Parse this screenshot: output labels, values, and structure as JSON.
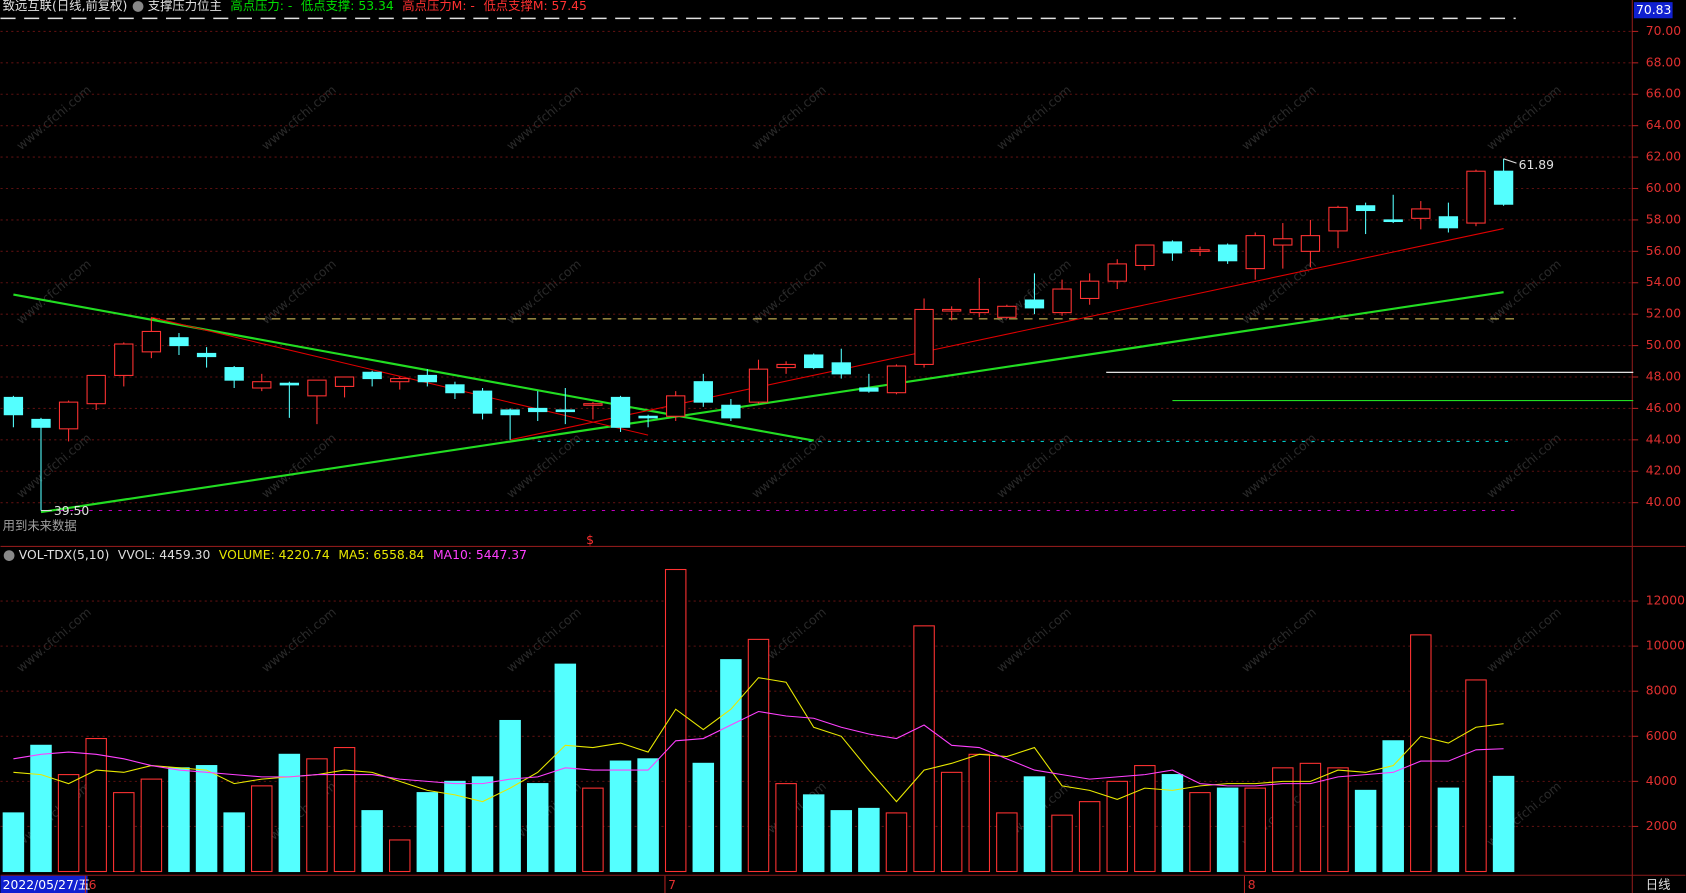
{
  "chart_data": {
    "type": "candlestick",
    "title": "致远互联(日线,前复权)",
    "indicator": "支撑压力位主",
    "indicator_items": [
      {
        "text": "高点压力: -",
        "color": "#00e000"
      },
      {
        "text": "低点支撑: 53.34",
        "color": "#00e000"
      },
      {
        "text": "高点压力M: -",
        "color": "#ff3030"
      },
      {
        "text": "低点支撑M: 57.45",
        "color": "#ff3030"
      }
    ],
    "up_color": "#ff3232",
    "down_color": "#54ffff",
    "open": [
      46.7,
      45.3,
      44.7,
      46.3,
      48.1,
      49.6,
      50.5,
      49.5,
      48.6,
      47.3,
      47.6,
      46.8,
      47.4,
      48.3,
      47.7,
      48.1,
      47.5,
      47.1,
      45.9,
      46.0,
      45.9,
      46.2,
      46.7,
      45.5,
      45.5,
      47.7,
      46.2,
      46.4,
      48.6,
      49.4,
      48.9,
      47.3,
      47.0,
      48.8,
      52.2,
      52.1,
      51.8,
      52.9,
      52.1,
      53.0,
      54.1,
      55.1,
      56.6,
      56.0,
      56.4,
      54.9,
      56.4,
      56.0,
      57.3,
      58.9,
      58.0,
      58.1,
      58.2,
      57.8,
      61.1
    ],
    "high": [
      46.8,
      45.4,
      46.5,
      48.1,
      50.2,
      51.8,
      50.8,
      49.9,
      48.7,
      48.2,
      47.7,
      47.8,
      48.0,
      48.4,
      48.0,
      48.5,
      47.7,
      47.3,
      46.0,
      47.1,
      47.3,
      46.4,
      46.8,
      45.6,
      47.1,
      48.2,
      46.6,
      49.1,
      49.0,
      49.5,
      49.8,
      48.2,
      48.8,
      53.0,
      52.5,
      54.3,
      52.6,
      54.6,
      54.2,
      54.6,
      55.5,
      56.4,
      56.7,
      56.3,
      56.5,
      57.2,
      57.8,
      58.0,
      58.9,
      59.1,
      59.6,
      59.2,
      59.1,
      61.2,
      61.89
    ],
    "low": [
      44.8,
      39.5,
      43.9,
      45.9,
      47.4,
      49.2,
      49.4,
      48.6,
      47.3,
      47.1,
      45.4,
      45.0,
      46.7,
      47.4,
      47.2,
      47.4,
      46.6,
      45.3,
      44.0,
      45.2,
      45.0,
      45.3,
      44.5,
      44.8,
      45.2,
      46.1,
      45.2,
      46.3,
      48.2,
      48.5,
      47.9,
      47.0,
      46.9,
      48.6,
      51.6,
      51.8,
      51.7,
      52.0,
      51.9,
      52.6,
      53.6,
      54.8,
      55.4,
      55.7,
      55.2,
      54.2,
      54.9,
      55.0,
      56.2,
      57.1,
      57.8,
      57.4,
      57.2,
      57.6,
      58.9
    ],
    "close": [
      45.6,
      44.8,
      46.4,
      48.1,
      50.1,
      50.9,
      50.0,
      49.3,
      47.8,
      47.7,
      47.5,
      47.8,
      48.0,
      47.9,
      47.9,
      47.7,
      47.0,
      45.7,
      45.6,
      45.8,
      45.8,
      46.3,
      44.8,
      45.4,
      46.8,
      46.4,
      45.4,
      48.5,
      48.8,
      48.6,
      48.2,
      47.1,
      48.7,
      52.3,
      52.3,
      52.3,
      52.5,
      52.4,
      53.6,
      54.1,
      55.2,
      56.4,
      55.9,
      56.1,
      55.4,
      57.0,
      56.8,
      57.0,
      58.8,
      58.6,
      57.9,
      58.7,
      57.5,
      61.1,
      59.0
    ],
    "ylim": [
      38,
      72
    ],
    "yticks": [
      {
        "value": 40,
        "label": "40.00"
      },
      {
        "value": 42,
        "label": "42.00"
      },
      {
        "value": 44,
        "label": "44.00"
      },
      {
        "value": 46,
        "label": "46.00"
      },
      {
        "value": 48,
        "label": "48.00"
      },
      {
        "value": 50,
        "label": "50.00"
      },
      {
        "value": 52,
        "label": "52.00"
      },
      {
        "value": 54,
        "label": "54.00"
      },
      {
        "value": 56,
        "label": "56.00"
      },
      {
        "value": 58,
        "label": "58.00"
      },
      {
        "value": 60,
        "label": "60.00"
      },
      {
        "value": 62,
        "label": "62.00"
      },
      {
        "value": 64,
        "label": "64.00"
      },
      {
        "value": 66,
        "label": "66.00"
      },
      {
        "value": 68,
        "label": "68.00"
      },
      {
        "value": 70,
        "label": "70.00"
      }
    ],
    "grid": true,
    "top_price": 70.83,
    "max_mark": {
      "index": 54,
      "value": 61.89
    },
    "min_mark": {
      "index": 1,
      "value": 39.5,
      "label": "39.50"
    },
    "lines": [
      {
        "color": "#22dd22",
        "width": 2,
        "from": [
          0,
          53.25
        ],
        "to": [
          29,
          43.95
        ]
      },
      {
        "color": "#22dd22",
        "width": 2,
        "from": [
          1,
          39.4
        ],
        "to": [
          54,
          53.4
        ]
      },
      {
        "color": "#e00000",
        "width": 1,
        "from": [
          5,
          51.8
        ],
        "to": [
          23,
          44.3
        ]
      },
      {
        "color": "#e00000",
        "width": 1,
        "from": [
          18,
          44.0
        ],
        "to": [
          54,
          57.45
        ]
      }
    ],
    "hlines": [
      {
        "price": 51.7,
        "from": 5,
        "to": 54.4,
        "color": "#e8d060",
        "dash": "8 6"
      },
      {
        "price": 43.9,
        "from": 19,
        "to": 54.4,
        "color": "#00c8c8",
        "dash": "3 6"
      },
      {
        "price": 39.5,
        "from": 1,
        "to": 54.4,
        "color": "#c000c0",
        "dash": "3 6"
      },
      {
        "price": 48.3,
        "from": 39.6,
        "to": 58.7,
        "color": "#ffffff",
        "dash": ""
      },
      {
        "price": 46.5,
        "from": 42,
        "to": 58.7,
        "color": "#22dd22",
        "dash": ""
      }
    ],
    "signal": "$",
    "note": "用到未来数据",
    "volume": {
      "title": "VOL-TDX(5,10)",
      "items": [
        {
          "text": "VVOL: 4459.30",
          "color": "#dddddd"
        },
        {
          "text": "VOLUME: 4220.74",
          "color": "#e8e800"
        },
        {
          "text": "MA5: 6558.84",
          "color": "#e8e800"
        },
        {
          "text": "MA10: 5447.37",
          "color": "#ff40ff"
        }
      ],
      "values": [
        2600,
        5600,
        4300,
        5900,
        3500,
        4100,
        4600,
        4700,
        2600,
        3800,
        5200,
        5000,
        5500,
        2700,
        1400,
        3500,
        4000,
        4200,
        6700,
        3900,
        9200,
        3700,
        4900,
        5000,
        13400,
        4800,
        9400,
        10300,
        3900,
        3400,
        2700,
        2800,
        2600,
        10900,
        4400,
        5200,
        2600,
        4200,
        2500,
        3100,
        4000,
        4700,
        4300,
        3500,
        3700,
        3700,
        4600,
        4800,
        4600,
        3600,
        5800,
        10500,
        3700,
        8500,
        4220.74
      ],
      "ma5": [
        4400,
        4300,
        3900,
        4500,
        4400,
        4700,
        4600,
        4500,
        3900,
        4100,
        4200,
        4300,
        4500,
        4400,
        4000,
        3600,
        3400,
        3100,
        3700,
        4400,
        5600,
        5500,
        5700,
        5300,
        7200,
        6300,
        7200,
        8600,
        8400,
        6400,
        6000,
        4500,
        3100,
        4500,
        4800,
        5200,
        5100,
        5500,
        3800,
        3600,
        3200,
        3700,
        3600,
        3800,
        3900,
        3900,
        4000,
        4000,
        4500,
        4400,
        4700,
        6000,
        5700,
        6400,
        6558.84
      ],
      "ma10": [
        5000,
        5200,
        5300,
        5200,
        5000,
        4700,
        4500,
        4400,
        4300,
        4200,
        4200,
        4300,
        4300,
        4300,
        4100,
        4000,
        3900,
        3900,
        4100,
        4200,
        4600,
        4500,
        4500,
        4500,
        5800,
        5900,
        6500,
        7100,
        6900,
        6800,
        6400,
        6100,
        5900,
        6500,
        5600,
        5500,
        5000,
        4500,
        4300,
        4100,
        4200,
        4300,
        4500,
        3900,
        3800,
        3800,
        3900,
        3900,
        4200,
        4300,
        4400,
        4900,
        4900,
        5400,
        5447.37
      ],
      "ma5_color": "#e8e800",
      "ma10_color": "#ff40ff",
      "ylim": [
        0,
        14400
      ],
      "yticks": [
        2000,
        4000,
        6000,
        8000,
        10000,
        12000
      ]
    },
    "date_label": "2022/05/27/五",
    "month_marks": [
      {
        "index": 3,
        "label": "6"
      },
      {
        "index": 24,
        "label": "7"
      },
      {
        "index": 45,
        "label": "8"
      }
    ],
    "period": "日线",
    "watermark": "www.cfchi.com"
  }
}
